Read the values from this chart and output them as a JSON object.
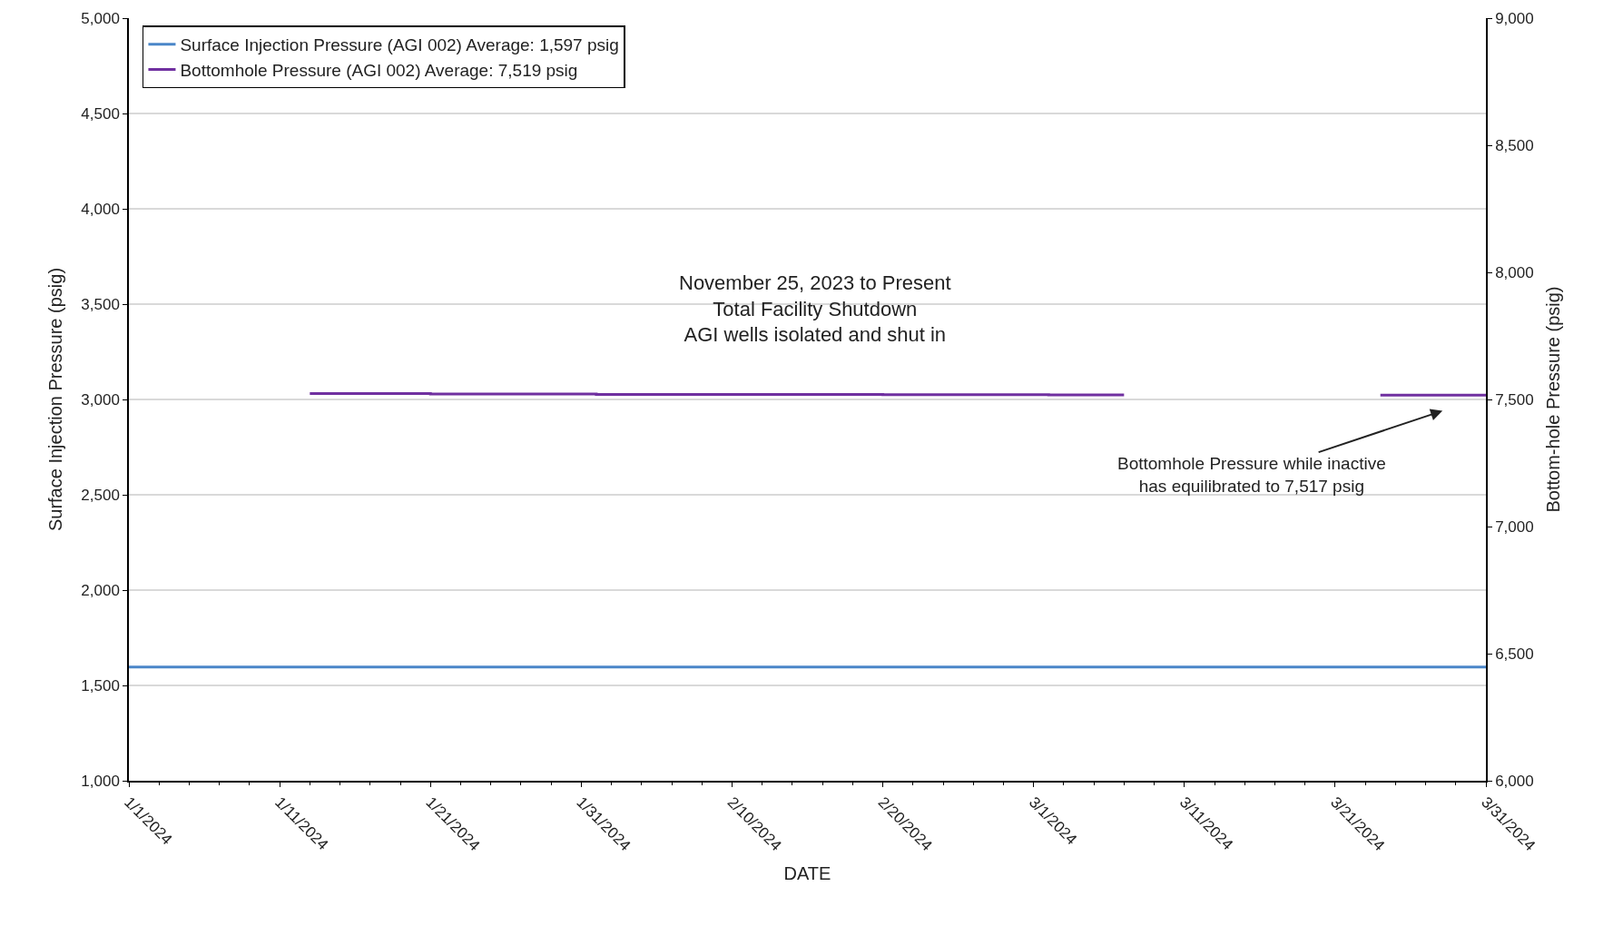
{
  "chart_data": {
    "type": "line",
    "xlabel": "DATE",
    "ylabel": "Surface Injection Pressure (psig)",
    "y2label": "Bottom-hole Pressure (psig)",
    "series": [
      {
        "name": "Surface Injection Pressure (AGI 002) Average: 1,597 psig",
        "color": "#4a86c8",
        "x": [
          "2024-01-01",
          "2024-03-31"
        ],
        "values": [
          1597,
          1597
        ]
      },
      {
        "name": "Bottomhole Pressure (AGI 002) Average: 7,519 psig",
        "color": "#7030a0",
        "axis": "y2",
        "x": [
          "2024-01-13",
          "2024-01-21",
          "2024-01-21",
          "2024-02-01",
          "2024-02-01",
          "2024-02-20",
          "2024-02-20",
          "2024-03-02",
          "2024-03-02",
          "2024-03-07"
        ],
        "values": [
          7523,
          7523,
          7521,
          7521,
          7520,
          7520,
          7519,
          7519,
          7518,
          7518
        ]
      },
      {
        "color": "#7030a0",
        "axis": "y2",
        "x": [
          "2024-03-24",
          "2024-03-31"
        ],
        "values": [
          7517,
          7517
        ]
      }
    ],
    "xlim": [
      "2024-01-01",
      "2024-03-31"
    ],
    "xticks": [
      {
        "value": "2024-01-01",
        "label": "1/1/2024"
      },
      {
        "value": "2024-01-11",
        "label": "1/11/2024"
      },
      {
        "value": "2024-01-21",
        "label": "1/21/2024"
      },
      {
        "value": "2024-01-31",
        "label": "1/31/2024"
      },
      {
        "value": "2024-02-10",
        "label": "2/10/2024"
      },
      {
        "value": "2024-02-20",
        "label": "2/20/2024"
      },
      {
        "value": "2024-03-01",
        "label": "3/1/2024"
      },
      {
        "value": "2024-03-11",
        "label": "3/11/2024"
      },
      {
        "value": "2024-03-21",
        "label": "3/21/2024"
      },
      {
        "value": "2024-03-31",
        "label": "3/31/2024"
      }
    ],
    "ylim": [
      1000,
      5000
    ],
    "yticks": [
      {
        "value": 1000,
        "label": "1,000"
      },
      {
        "value": 1500,
        "label": "1,500"
      },
      {
        "value": 2000,
        "label": "2,000"
      },
      {
        "value": 2500,
        "label": "2,500"
      },
      {
        "value": 3000,
        "label": "3,000"
      },
      {
        "value": 3500,
        "label": "3,500"
      },
      {
        "value": 4000,
        "label": "4,000"
      },
      {
        "value": 4500,
        "label": "4,500"
      },
      {
        "value": 5000,
        "label": "5,000"
      }
    ],
    "y2lim": [
      6000,
      9000
    ],
    "y2ticks": [
      {
        "value": 6000,
        "label": "6,000"
      },
      {
        "value": 6500,
        "label": "6,500"
      },
      {
        "value": 7000,
        "label": "7,000"
      },
      {
        "value": 7500,
        "label": "7,500"
      },
      {
        "value": 8000,
        "label": "8,000"
      },
      {
        "value": 8500,
        "label": "8,500"
      },
      {
        "value": 9000,
        "label": "9,000"
      }
    ],
    "annotations": [
      "November 25, 2023 to Present\nTotal Facility Shutdown\nAGI wells isolated and shut in",
      "Bottomhole Pressure while inactive\nhas equilibrated to 7,517 psig"
    ],
    "grid": "y",
    "legend": "top left",
    "marker": "none",
    "line_style": "solid"
  }
}
